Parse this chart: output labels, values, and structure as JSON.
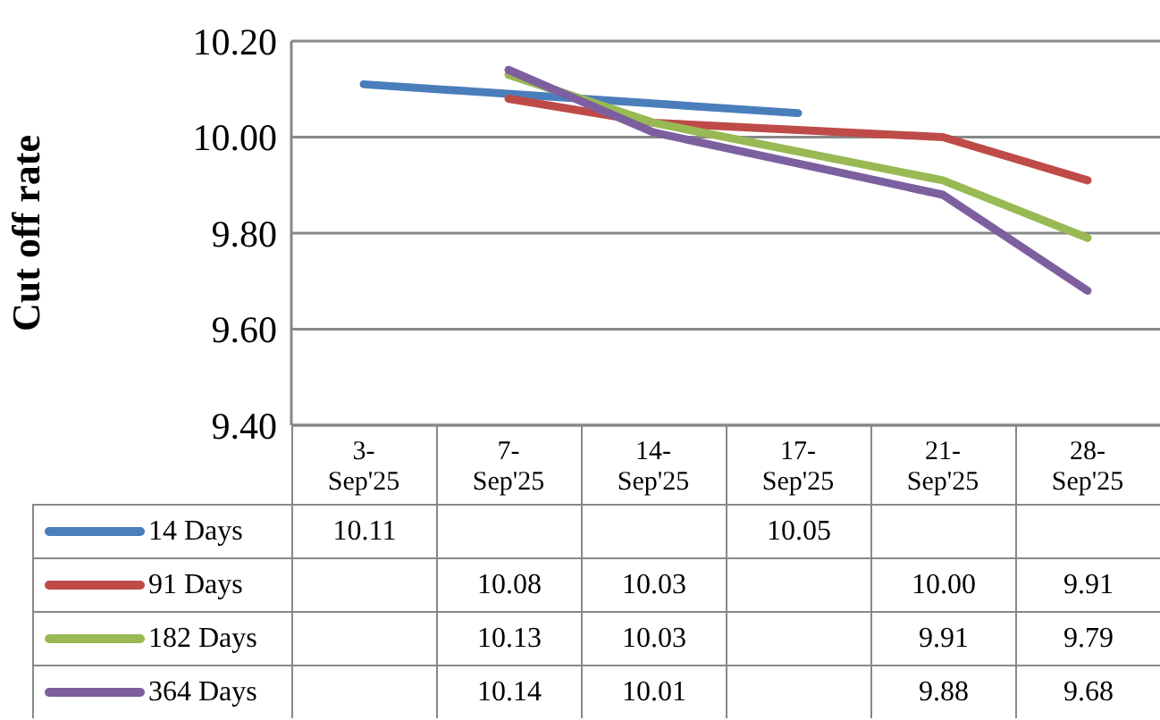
{
  "chart_data": {
    "type": "line",
    "ylabel": "Cut off rate",
    "categories": [
      "3-Sep'25",
      "7-Sep'25",
      "14-Sep'25",
      "17-Sep'25",
      "21-Sep'25",
      "28-Sep'25"
    ],
    "series": [
      {
        "name": "14 Days",
        "color": "#4a7ebb",
        "values": [
          10.11,
          null,
          null,
          10.05,
          null,
          null
        ],
        "value_labels": [
          "10.11",
          null,
          null,
          "10.05",
          null,
          null
        ]
      },
      {
        "name": "91 Days",
        "color": "#be4b48",
        "values": [
          null,
          10.08,
          10.03,
          null,
          10.0,
          9.91
        ],
        "value_labels": [
          null,
          "10.08",
          "10.03",
          null,
          "10.00",
          "9.91"
        ]
      },
      {
        "name": "182 Days",
        "color": "#98b954",
        "values": [
          null,
          10.13,
          10.03,
          null,
          9.91,
          9.79
        ],
        "value_labels": [
          null,
          "10.13",
          "10.03",
          null,
          "9.91",
          "9.79"
        ]
      },
      {
        "name": "364 Days",
        "color": "#7d5fa0",
        "values": [
          null,
          10.14,
          10.01,
          null,
          9.88,
          9.68
        ],
        "value_labels": [
          null,
          "10.14",
          "10.01",
          null,
          "9.88",
          "9.68"
        ]
      }
    ],
    "ylim": [
      9.4,
      10.2
    ],
    "yticks": [
      {
        "value": 9.4,
        "label": "9.40"
      },
      {
        "value": 9.6,
        "label": "9.60"
      },
      {
        "value": 9.8,
        "label": "9.80"
      },
      {
        "value": 10,
        "label": "10.00"
      },
      {
        "value": 10.2,
        "label": "10.20"
      }
    ],
    "grid": "y",
    "legend": "bottom",
    "marker": "none",
    "line_style": "solid"
  }
}
